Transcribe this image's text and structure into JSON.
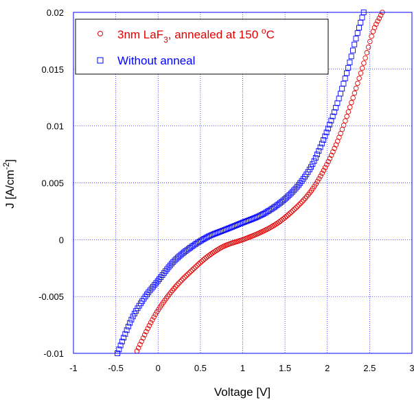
{
  "chart_data": {
    "type": "scatter",
    "xlabel": "Voltage [V]",
    "ylabel": {
      "base": "J [A/cm",
      "sup": "-2",
      "tail": "]"
    },
    "xlim": [
      -1,
      3
    ],
    "ylim": [
      -0.01,
      0.02
    ],
    "grid": true,
    "legend_position": "top-left",
    "x_ticks": [
      -1,
      -0.5,
      0,
      0.5,
      1,
      1.5,
      2,
      2.5,
      3
    ],
    "x_tick_labels": [
      "-1",
      "-0.5",
      "0",
      "0.5",
      "1",
      "1.5",
      "2",
      "2.5",
      "3"
    ],
    "y_ticks": [
      -0.01,
      -0.005,
      0,
      0.005,
      0.01,
      0.015,
      0.02
    ],
    "y_tick_labels": [
      "-0.01",
      "-0.005",
      "0",
      "0.005",
      "0.01",
      "0.015",
      "0.02"
    ],
    "colors": {
      "axis": "#0000ff",
      "grid": "#0000ff"
    },
    "series": [
      {
        "name": "3nm LaF3, annealed at 150 °C",
        "legend": {
          "p1": "3nm LaF",
          "sub": "3",
          "p2": ", annealed at 150 ",
          "sup": "o",
          "p3": "C"
        },
        "marker": "circle",
        "color": "#e00000",
        "points": [
          [
            -0.25,
            -0.0098
          ],
          [
            -0.1,
            -0.0075
          ],
          [
            0.0,
            -0.0062
          ],
          [
            0.2,
            -0.0042
          ],
          [
            0.4,
            -0.0027
          ],
          [
            0.6,
            -0.0014
          ],
          [
            0.8,
            -0.0005
          ],
          [
            1.0,
            0.0
          ],
          [
            1.2,
            0.0006
          ],
          [
            1.4,
            0.0014
          ],
          [
            1.6,
            0.0026
          ],
          [
            1.8,
            0.0042
          ],
          [
            2.0,
            0.0067
          ],
          [
            2.15,
            0.0092
          ],
          [
            2.3,
            0.0124
          ],
          [
            2.45,
            0.016
          ],
          [
            2.55,
            0.0185
          ],
          [
            2.65,
            0.02
          ]
        ]
      },
      {
        "name": "Without anneal",
        "legend": {
          "p1": "Without anneal"
        },
        "marker": "square",
        "color": "#0000ff",
        "points": [
          [
            -0.48,
            -0.01
          ],
          [
            -0.4,
            -0.0085
          ],
          [
            -0.3,
            -0.0068
          ],
          [
            -0.15,
            -0.005
          ],
          [
            0.0,
            -0.0036
          ],
          [
            0.2,
            -0.0018
          ],
          [
            0.4,
            -0.0006
          ],
          [
            0.6,
            0.0003
          ],
          [
            0.8,
            0.0009
          ],
          [
            1.0,
            0.0015
          ],
          [
            1.2,
            0.0021
          ],
          [
            1.4,
            0.003
          ],
          [
            1.6,
            0.0043
          ],
          [
            1.8,
            0.0063
          ],
          [
            1.95,
            0.0087
          ],
          [
            2.1,
            0.0116
          ],
          [
            2.25,
            0.0152
          ],
          [
            2.35,
            0.018
          ],
          [
            2.43,
            0.02
          ]
        ]
      }
    ]
  }
}
